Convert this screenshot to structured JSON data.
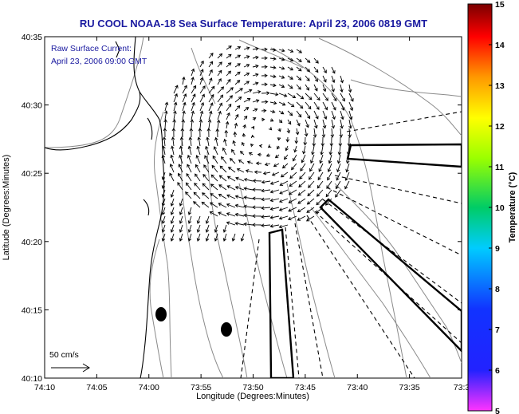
{
  "title": "RU COOL  NOAA-18  Sea Surface Temperature:  April 23, 2006 0819 GMT",
  "legend": {
    "line1": "Raw Surface Current:",
    "line2": "April 23, 2006 09:00 GMT",
    "scale_label": "50 cm/s"
  },
  "axes": {
    "xlabel": "Longitude (Degrees:Minutes)",
    "ylabel": "Latitude (Degrees:Minutes)",
    "x_ticks": [
      "74:10",
      "74:05",
      "74:00",
      "73:55",
      "73:50",
      "73:45",
      "73:40",
      "73:35",
      "73:3"
    ],
    "y_ticks": [
      "40:35",
      "40:30",
      "40:25",
      "40:20",
      "40:15",
      "40:10"
    ]
  },
  "colorbar": {
    "label": "Temperature (°C)",
    "ticks": [
      "15",
      "14",
      "13",
      "12",
      "11",
      "10",
      "9",
      "8",
      "7",
      "6",
      "5"
    ],
    "colors": [
      "#ff33ff",
      "#2222ff",
      "#00ccff",
      "#00cc66",
      "#99ff00",
      "#ffff00",
      "#ff9900",
      "#ff0000",
      "#7a0000"
    ]
  },
  "colors": {
    "title": "#1a1aa0",
    "contour": "#8a8a8a",
    "coast": "#000000"
  }
}
